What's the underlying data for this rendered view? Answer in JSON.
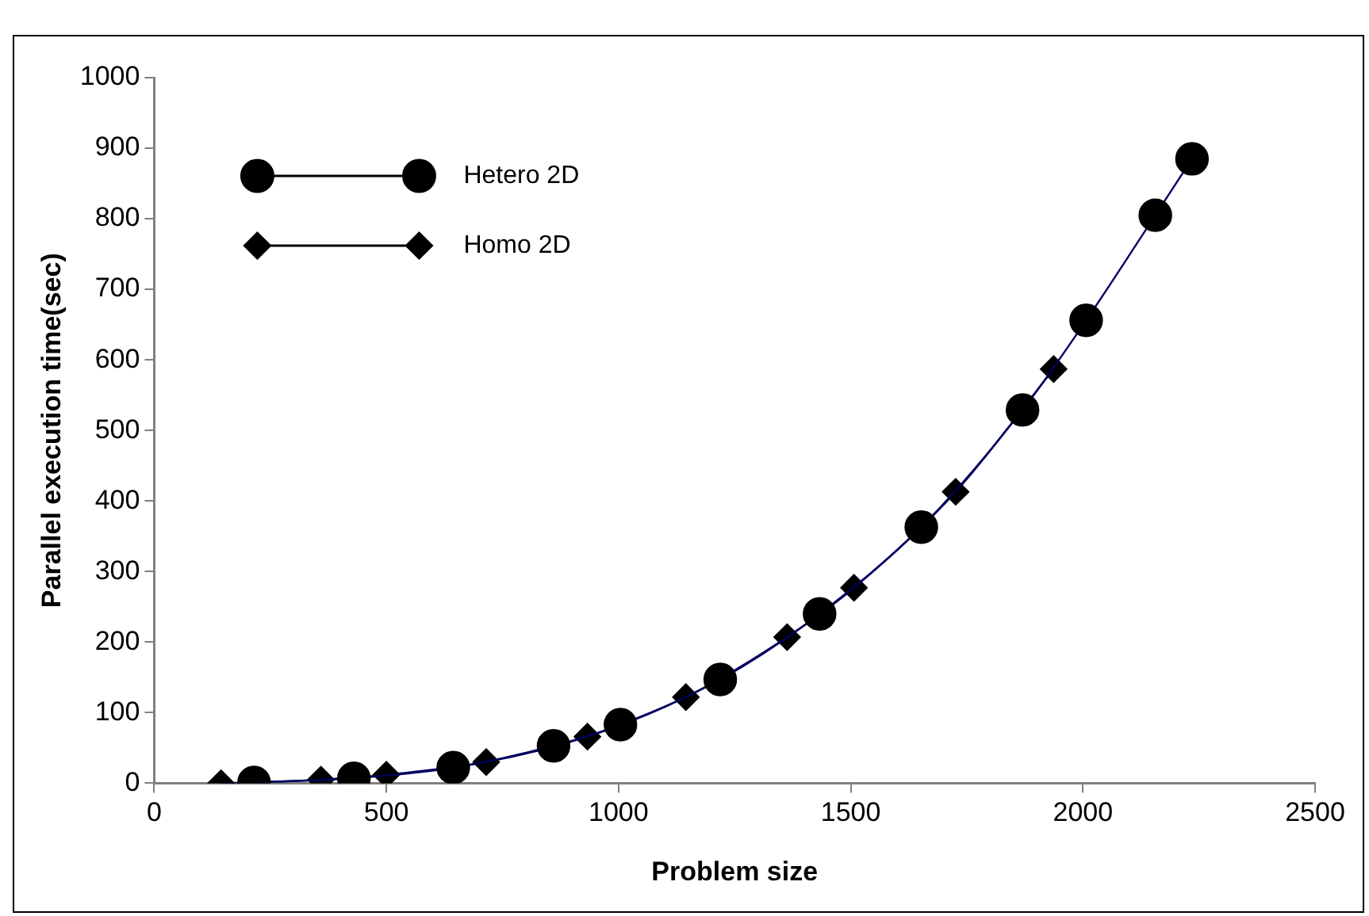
{
  "chart_data": {
    "type": "line",
    "xlabel": "Problem size",
    "ylabel": "Parallel execution time(sec)",
    "xlim": [
      0,
      2500
    ],
    "xticks": [
      0,
      500,
      1000,
      1500,
      2000,
      2500
    ],
    "ylim": [
      0,
      1000
    ],
    "yticks": [
      0,
      100,
      200,
      300,
      400,
      500,
      600,
      700,
      800,
      900,
      1000
    ],
    "grid": false,
    "legend": "top left",
    "series": [
      {
        "name": "Hetero 2D",
        "color": "#000000",
        "marker": "circle",
        "x": [
          215,
          430,
          644,
          860,
          1004,
          1219,
          1433,
          1652,
          1870,
          2007,
          2156,
          2235
        ],
        "values": [
          1,
          7,
          22,
          53,
          83,
          147,
          240,
          363,
          529,
          656,
          805,
          885
        ]
      },
      {
        "name": "Homo 2D",
        "color": "#000000",
        "marker": "diamond",
        "x": [
          144,
          359,
          500,
          715,
          933,
          1145,
          1363,
          1507,
          1726,
          1937
        ],
        "values": [
          0,
          5,
          12,
          30,
          66,
          122,
          207,
          277,
          413,
          587
        ]
      }
    ]
  }
}
